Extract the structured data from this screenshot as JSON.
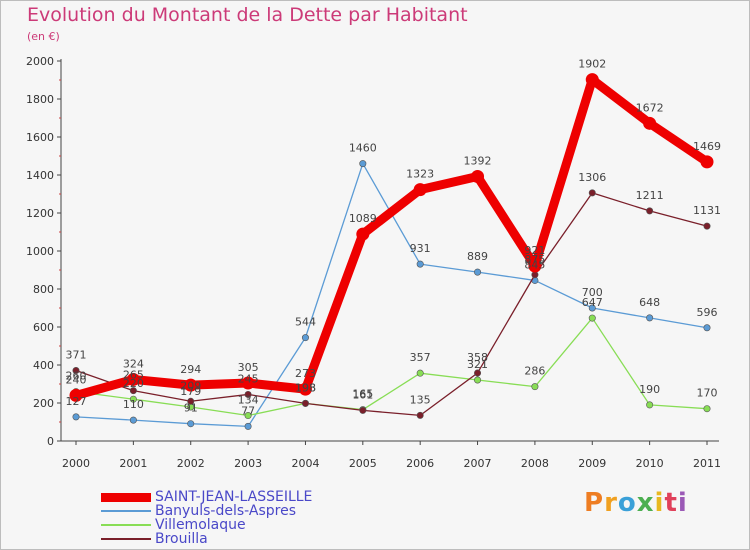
{
  "chart_data": {
    "type": "line",
    "title": "Evolution du Montant de la Dette par Habitant",
    "subtitle": "(en €)",
    "x": [
      "2000",
      "2001",
      "2002",
      "2003",
      "2004",
      "2005",
      "2006",
      "2007",
      "2008",
      "2009",
      "2010",
      "2011"
    ],
    "ylim": [
      0,
      2000
    ],
    "yticks": [
      0,
      200,
      400,
      600,
      800,
      1000,
      1200,
      1400,
      1600,
      1800,
      2000
    ],
    "grid": false,
    "legend_position": "bottom-left",
    "series": [
      {
        "name": "SAINT-JEAN-LASSEILLE",
        "color": "#ee0000",
        "values": [
          240,
          324,
          294,
          305,
          273,
          1089,
          1323,
          1392,
          921,
          1902,
          1672,
          1469
        ],
        "labels": [
          "240",
          "324",
          "294",
          "305",
          "273",
          "1089",
          "1323",
          "1392",
          "921",
          "1902",
          "1672",
          "1469"
        ]
      },
      {
        "name": "Banyuls-dels-Aspres",
        "color": "#5b9bd5",
        "values": [
          127,
          110,
          91,
          77,
          544,
          1460,
          931,
          889,
          845,
          700,
          648,
          596
        ],
        "labels": [
          "127",
          "110",
          "91",
          "77",
          "544",
          "1460",
          "931",
          "889",
          "845",
          "700",
          "648",
          "596"
        ]
      },
      {
        "name": "Villemolaque",
        "color": "#88dd55",
        "values": [
          260,
          220,
          179,
          134,
          198,
          165,
          357,
          321,
          286,
          647,
          190,
          170
        ],
        "labels": [
          "260",
          "220",
          "179",
          "134",
          "198",
          "165",
          "357",
          "321",
          "286",
          "647",
          "190",
          "170"
        ]
      },
      {
        "name": "Brouilla",
        "color": "#7a1f2a",
        "values": [
          371,
          265,
          209,
          245,
          198,
          161,
          135,
          358,
          875,
          1306,
          1211,
          1131
        ],
        "labels": [
          "371",
          "265",
          "209",
          "245",
          "198",
          "161",
          "135",
          "358",
          "875",
          "1306",
          "1211",
          "1131"
        ]
      }
    ]
  },
  "brand": {
    "text": "Proxiti",
    "letters": [
      "P",
      "r",
      "o",
      "x",
      "i",
      "t",
      "i"
    ],
    "colors": [
      "#ee7d22",
      "#f0a020",
      "#3aa0d8",
      "#4caf50",
      "#e8b820",
      "#e0405a",
      "#9b59b6"
    ]
  }
}
